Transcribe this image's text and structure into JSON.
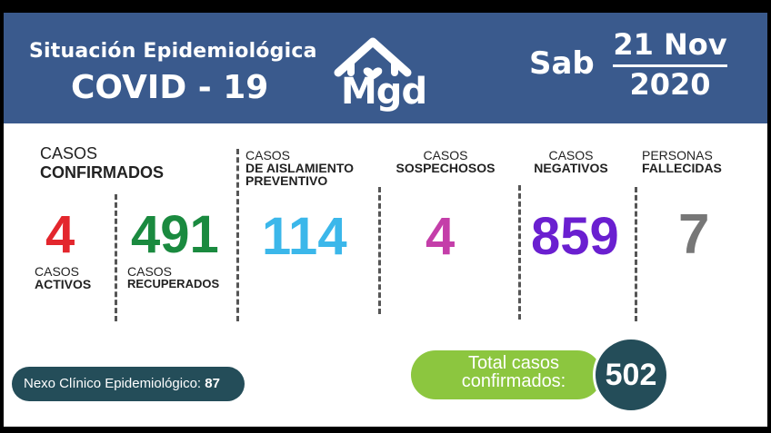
{
  "header": {
    "subtitle": "Situación Epidemiológica",
    "title": "COVID - 19",
    "logo_text": "Mgd",
    "day": "Sab",
    "day_month": "21 Nov",
    "year": "2020",
    "bg_color": "#3a5a8d"
  },
  "stats": {
    "confirmados": {
      "label1": "CASOS",
      "label2": "CONFIRMADOS"
    },
    "activos": {
      "value": "4",
      "label1": "CASOS",
      "label2": "ACTIVOS",
      "color": "#e3262d"
    },
    "recuperados": {
      "value": "491",
      "label1": "CASOS",
      "label2": "RECUPERADOS",
      "color": "#1a8a3f"
    },
    "aislamiento": {
      "value": "114",
      "label1": "CASOS",
      "label2": "DE AISLAMIENTO",
      "label3": "PREVENTIVO",
      "color": "#3bb7ea"
    },
    "sospechosos": {
      "value": "4",
      "label1": "CASOS",
      "label2": "SOSPECHOSOS",
      "color": "#c43ea9"
    },
    "negativos": {
      "value": "859",
      "label1": "CASOS",
      "label2": "NEGATIVOS",
      "color": "#6a1fd0"
    },
    "fallecidas": {
      "value": "7",
      "label1": "PERSONAS",
      "label2": "FALLECIDAS",
      "color": "#777777"
    }
  },
  "nexo": {
    "label": "Nexo Clínico Epidemiológico:",
    "value": "87"
  },
  "total": {
    "label_line1": "Total casos",
    "label_line2": "confirmados:",
    "value": "502"
  }
}
